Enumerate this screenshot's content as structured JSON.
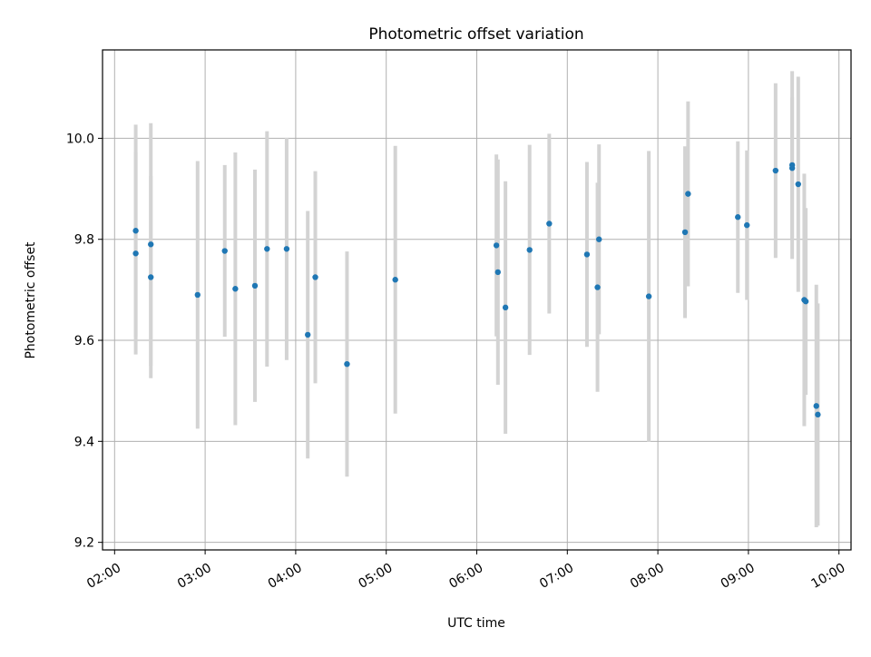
{
  "chart_data": {
    "type": "scatter",
    "title": "Photometric offset variation",
    "xlabel": "UTC time",
    "ylabel": "Photometric offset",
    "grid": true,
    "xlim": [
      "01:52",
      "10:08"
    ],
    "ylim": [
      9.185,
      10.175
    ],
    "x_ticks": [
      "02:00",
      "03:00",
      "04:00",
      "05:00",
      "06:00",
      "07:00",
      "08:00",
      "09:00",
      "10:00"
    ],
    "y_ticks": [
      9.2,
      9.4,
      9.6,
      9.8,
      10.0
    ],
    "y_tick_labels": [
      "9.2",
      "9.4",
      "9.6",
      "9.8",
      "10.0"
    ],
    "colors": {
      "point": "#1f77b4",
      "errorbar": "#d3d3d3",
      "grid": "#b0b0b0"
    },
    "points": [
      {
        "x": "02:14",
        "y": 9.772,
        "err": 0.2
      },
      {
        "x": "02:14",
        "y": 9.817,
        "err": 0.21
      },
      {
        "x": "02:24",
        "y": 9.725,
        "err": 0.2
      },
      {
        "x": "02:24",
        "y": 9.79,
        "err": 0.24
      },
      {
        "x": "02:55",
        "y": 9.69,
        "err": 0.265
      },
      {
        "x": "03:13",
        "y": 9.777,
        "err": 0.17
      },
      {
        "x": "03:20",
        "y": 9.702,
        "err": 0.27
      },
      {
        "x": "03:33",
        "y": 9.708,
        "err": 0.23
      },
      {
        "x": "03:41",
        "y": 9.781,
        "err": 0.233
      },
      {
        "x": "03:54",
        "y": 9.781,
        "err": 0.22
      },
      {
        "x": "04:08",
        "y": 9.611,
        "err": 0.245
      },
      {
        "x": "04:13",
        "y": 9.725,
        "err": 0.21
      },
      {
        "x": "04:34",
        "y": 9.553,
        "err": 0.223
      },
      {
        "x": "05:06",
        "y": 9.72,
        "err": 0.265
      },
      {
        "x": "06:13",
        "y": 9.788,
        "err": 0.18
      },
      {
        "x": "06:14",
        "y": 9.735,
        "err": 0.223
      },
      {
        "x": "06:19",
        "y": 9.665,
        "err": 0.25
      },
      {
        "x": "06:35",
        "y": 9.779,
        "err": 0.208
      },
      {
        "x": "06:48",
        "y": 9.831,
        "err": 0.178
      },
      {
        "x": "07:13",
        "y": 9.77,
        "err": 0.183
      },
      {
        "x": "07:20",
        "y": 9.705,
        "err": 0.207
      },
      {
        "x": "07:21",
        "y": 9.8,
        "err": 0.188
      },
      {
        "x": "07:54",
        "y": 9.687,
        "err": 0.288
      },
      {
        "x": "08:18",
        "y": 9.814,
        "err": 0.17
      },
      {
        "x": "08:20",
        "y": 9.89,
        "err": 0.183
      },
      {
        "x": "08:53",
        "y": 9.844,
        "err": 0.15
      },
      {
        "x": "08:59",
        "y": 9.828,
        "err": 0.148
      },
      {
        "x": "09:18",
        "y": 9.936,
        "err": 0.173
      },
      {
        "x": "09:29",
        "y": 9.941,
        "err": 0.14
      },
      {
        "x": "09:29",
        "y": 9.947,
        "err": 0.186
      },
      {
        "x": "09:33",
        "y": 9.909,
        "err": 0.213
      },
      {
        "x": "09:37",
        "y": 9.68,
        "err": 0.25
      },
      {
        "x": "09:38",
        "y": 9.677,
        "err": 0.185
      },
      {
        "x": "09:45",
        "y": 9.47,
        "err": 0.24
      },
      {
        "x": "09:46",
        "y": 9.453,
        "err": 0.22
      }
    ]
  }
}
